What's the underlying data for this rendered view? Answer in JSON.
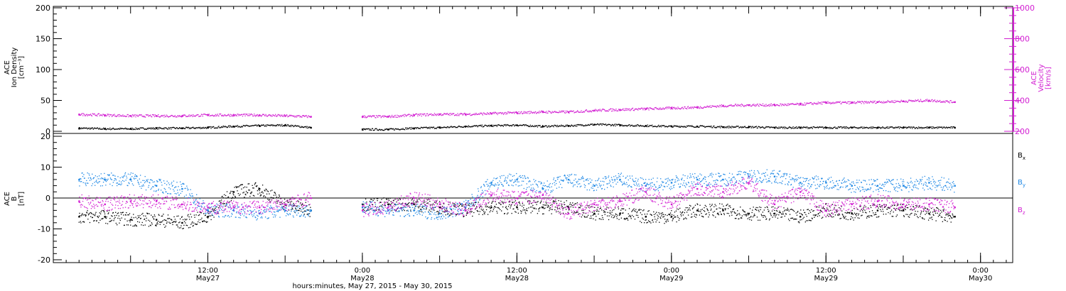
{
  "colors": {
    "black": "#000000",
    "magenta": "#d21fd2",
    "blue": "#1e88e5"
  },
  "chart_data": [
    {
      "type": "scatter",
      "panel": "top",
      "y_label": [
        "ACE",
        "Ion Density",
        "[cm⁻³]"
      ],
      "y_range": [
        0,
        200
      ],
      "y_ticks": [
        "0",
        "50",
        "100",
        "150",
        "200"
      ],
      "y2_label": [
        "ACE",
        "Velocity",
        "[km/s]"
      ],
      "y2_range": [
        200,
        1000
      ],
      "y2_ticks": [
        "200",
        "400",
        "600",
        "800",
        "1000"
      ],
      "series": [
        {
          "axis": "left",
          "color": "black",
          "x_hours": [
            2,
            4,
            6,
            8,
            10,
            12,
            14,
            16,
            18,
            20,
            22,
            24,
            26,
            28,
            30,
            32,
            34,
            36,
            38,
            40,
            42,
            44,
            46,
            48,
            50,
            52,
            54,
            56,
            58,
            60,
            62,
            64,
            66,
            68,
            70
          ],
          "values": [
            5,
            4,
            4,
            5,
            5,
            6,
            8,
            9,
            10,
            6,
            null,
            3,
            3,
            5,
            6,
            8,
            9,
            10,
            8,
            9,
            11,
            10,
            9,
            8,
            8,
            7,
            7,
            6,
            6,
            6,
            6,
            6,
            6,
            6,
            6
          ]
        },
        {
          "axis": "right",
          "color": "magenta",
          "x_hours": [
            2,
            4,
            6,
            8,
            10,
            12,
            14,
            16,
            18,
            20,
            22,
            24,
            26,
            28,
            30,
            32,
            34,
            36,
            38,
            40,
            42,
            44,
            46,
            48,
            50,
            52,
            54,
            56,
            58,
            60,
            62,
            64,
            66,
            68,
            70
          ],
          "values": [
            310,
            305,
            300,
            300,
            300,
            305,
            305,
            305,
            300,
            295,
            null,
            295,
            295,
            305,
            310,
            310,
            315,
            320,
            325,
            325,
            335,
            340,
            345,
            350,
            355,
            365,
            370,
            370,
            375,
            385,
            385,
            390,
            395,
            400,
            390
          ]
        }
      ]
    },
    {
      "type": "scatter",
      "panel": "bottom",
      "y_label": [
        "ACE",
        "B",
        "[nT]"
      ],
      "y_range": [
        -20,
        20
      ],
      "y_ticks": [
        "-20",
        "-10",
        "0",
        "10",
        "20"
      ],
      "series": [
        {
          "name": "Bx",
          "color": "black",
          "x_hours": [
            2,
            4,
            6,
            8,
            10,
            12,
            14,
            16,
            18,
            20,
            22,
            24,
            26,
            28,
            30,
            32,
            34,
            36,
            38,
            40,
            42,
            44,
            46,
            48,
            50,
            52,
            54,
            56,
            58,
            60,
            62,
            64,
            66,
            68,
            70
          ],
          "values": [
            -6,
            -6,
            -7,
            -7,
            -8,
            -6,
            2,
            3,
            -2,
            -4,
            null,
            -2,
            -2,
            -2,
            -3,
            -4,
            -3,
            -3,
            -3,
            -3,
            -5,
            -5,
            -6,
            -6,
            -4,
            -4,
            -5,
            -5,
            -6,
            -4,
            -5,
            -4,
            -4,
            -5,
            -6
          ]
        },
        {
          "name": "By",
          "color": "blue",
          "x_hours": [
            2,
            4,
            6,
            8,
            10,
            12,
            14,
            16,
            18,
            20,
            22,
            24,
            26,
            28,
            30,
            32,
            34,
            36,
            38,
            40,
            42,
            44,
            46,
            48,
            50,
            52,
            54,
            56,
            58,
            60,
            62,
            64,
            66,
            68,
            70
          ],
          "values": [
            6,
            6,
            6,
            4,
            3,
            -4,
            -4,
            -5,
            -4,
            -4,
            null,
            -3,
            -4,
            -4,
            -5,
            -3,
            5,
            6,
            3,
            6,
            4,
            6,
            4,
            5,
            6,
            6,
            7,
            7,
            5,
            5,
            4,
            4,
            4,
            5,
            4
          ]
        },
        {
          "name": "Bz",
          "color": "magenta",
          "x_hours": [
            2,
            4,
            6,
            8,
            10,
            12,
            14,
            16,
            18,
            20,
            22,
            24,
            26,
            28,
            30,
            32,
            34,
            36,
            38,
            40,
            42,
            44,
            46,
            48,
            50,
            52,
            54,
            56,
            58,
            60,
            62,
            64,
            66,
            68,
            70
          ],
          "values": [
            -1,
            -2,
            -1,
            -1,
            -2,
            -3,
            -3,
            -3,
            -2,
            0,
            null,
            -4,
            -3,
            0,
            -2,
            -4,
            1,
            0,
            1,
            -5,
            -2,
            -1,
            2,
            -2,
            3,
            2,
            5,
            -2,
            2,
            -4,
            -2,
            -1,
            -2,
            -2,
            -3
          ]
        }
      ]
    }
  ],
  "x_axis": {
    "range_hours": [
      0,
      74.5
    ],
    "ticks": [
      {
        "hours": 12,
        "time": "12:00",
        "day": "May27"
      },
      {
        "hours": 24,
        "time": "0:00",
        "day": "May28"
      },
      {
        "hours": 36,
        "time": "12:00",
        "day": "May28"
      },
      {
        "hours": 48,
        "time": "0:00",
        "day": "May29"
      },
      {
        "hours": 60,
        "time": "12:00",
        "day": "May29"
      },
      {
        "hours": 72,
        "time": "0:00",
        "day": "May30"
      }
    ],
    "label": "hours:minutes, May 27, 2015 - May 30, 2015"
  },
  "legend": [
    {
      "symbol": "B",
      "sub": "x",
      "color": "black"
    },
    {
      "symbol": "B",
      "sub": "y",
      "color": "blue"
    },
    {
      "symbol": "B",
      "sub": "z",
      "color": "magenta"
    }
  ]
}
